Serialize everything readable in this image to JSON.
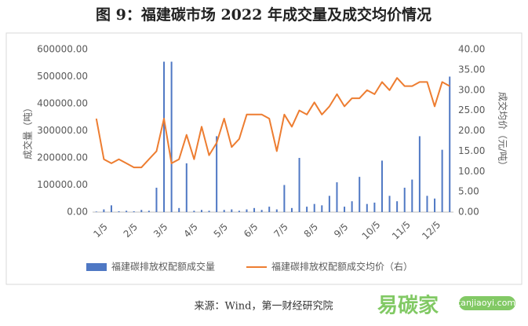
{
  "chart_data": {
    "type": "bar",
    "title": "图 9：福建碳市场 2022 年成交量及成交均价情况",
    "y_label": "成交量（吨）",
    "y2_label": "成交均价（元/吨）",
    "source": "来源：Wind，第一财经研究院",
    "watermark": "易碳家",
    "watermark_url": "tanjiaoyi.com",
    "categories": [
      "1/5",
      null,
      null,
      null,
      "2/5",
      null,
      null,
      null,
      "3/5",
      null,
      null,
      null,
      "4/5",
      null,
      null,
      null,
      "5/5",
      null,
      null,
      null,
      "6/5",
      null,
      null,
      null,
      "7/5",
      null,
      null,
      null,
      "8/5",
      null,
      null,
      null,
      "9/5",
      null,
      null,
      null,
      "10/5",
      null,
      null,
      null,
      "11/5",
      null,
      null,
      null,
      "12/5",
      null,
      null,
      null
    ],
    "ylim": [
      0,
      600000
    ],
    "yticks": [
      {
        "value": 0,
        "label": "0.00"
      },
      {
        "value": 100000,
        "label": "100000.00"
      },
      {
        "value": 200000,
        "label": "200000.00"
      },
      {
        "value": 300000,
        "label": "300000.00"
      },
      {
        "value": 400000,
        "label": "400000.00"
      },
      {
        "value": 500000,
        "label": "500000.00"
      },
      {
        "value": 600000,
        "label": "600000.00"
      }
    ],
    "y2lim": [
      0,
      40
    ],
    "y2ticks": [
      {
        "value": 0,
        "label": "0.00"
      },
      {
        "value": 5,
        "label": "5.00"
      },
      {
        "value": 10,
        "label": "10.00"
      },
      {
        "value": 15,
        "label": "15.00"
      },
      {
        "value": 20,
        "label": "20.00"
      },
      {
        "value": 25,
        "label": "25.00"
      },
      {
        "value": 30,
        "label": "30.00"
      },
      {
        "value": 35,
        "label": "35.00"
      },
      {
        "value": 40,
        "label": "40.00"
      }
    ],
    "grid": false,
    "legend": "bottom",
    "series": [
      {
        "name": "福建碳排放权配额成交量",
        "type": "bar",
        "color": "#4f78c4",
        "values": [
          2000,
          10000,
          25000,
          3000,
          5000,
          3000,
          8000,
          5000,
          90000,
          555000,
          555000,
          15000,
          180000,
          5000,
          8000,
          5000,
          280000,
          8000,
          10000,
          5000,
          10000,
          15000,
          8000,
          20000,
          10000,
          100000,
          15000,
          200000,
          20000,
          30000,
          25000,
          60000,
          110000,
          20000,
          40000,
          130000,
          30000,
          35000,
          190000,
          60000,
          40000,
          90000,
          120000,
          280000,
          60000,
          50000,
          230000,
          500000
        ]
      },
      {
        "name": "福建碳排放权配额成交均价（右）",
        "type": "line",
        "axis": "y2",
        "color": "#ed7d31",
        "values": [
          23,
          13,
          12,
          13,
          12,
          11,
          11,
          13,
          15,
          23,
          12,
          13,
          19,
          13,
          21,
          14,
          17,
          23,
          16,
          18,
          24,
          24,
          24,
          23,
          15,
          24,
          21,
          25,
          24,
          27,
          24,
          26,
          29,
          26,
          28,
          28,
          30,
          29,
          32,
          30,
          33,
          31,
          31,
          32,
          32,
          26,
          32,
          31
        ]
      }
    ]
  }
}
